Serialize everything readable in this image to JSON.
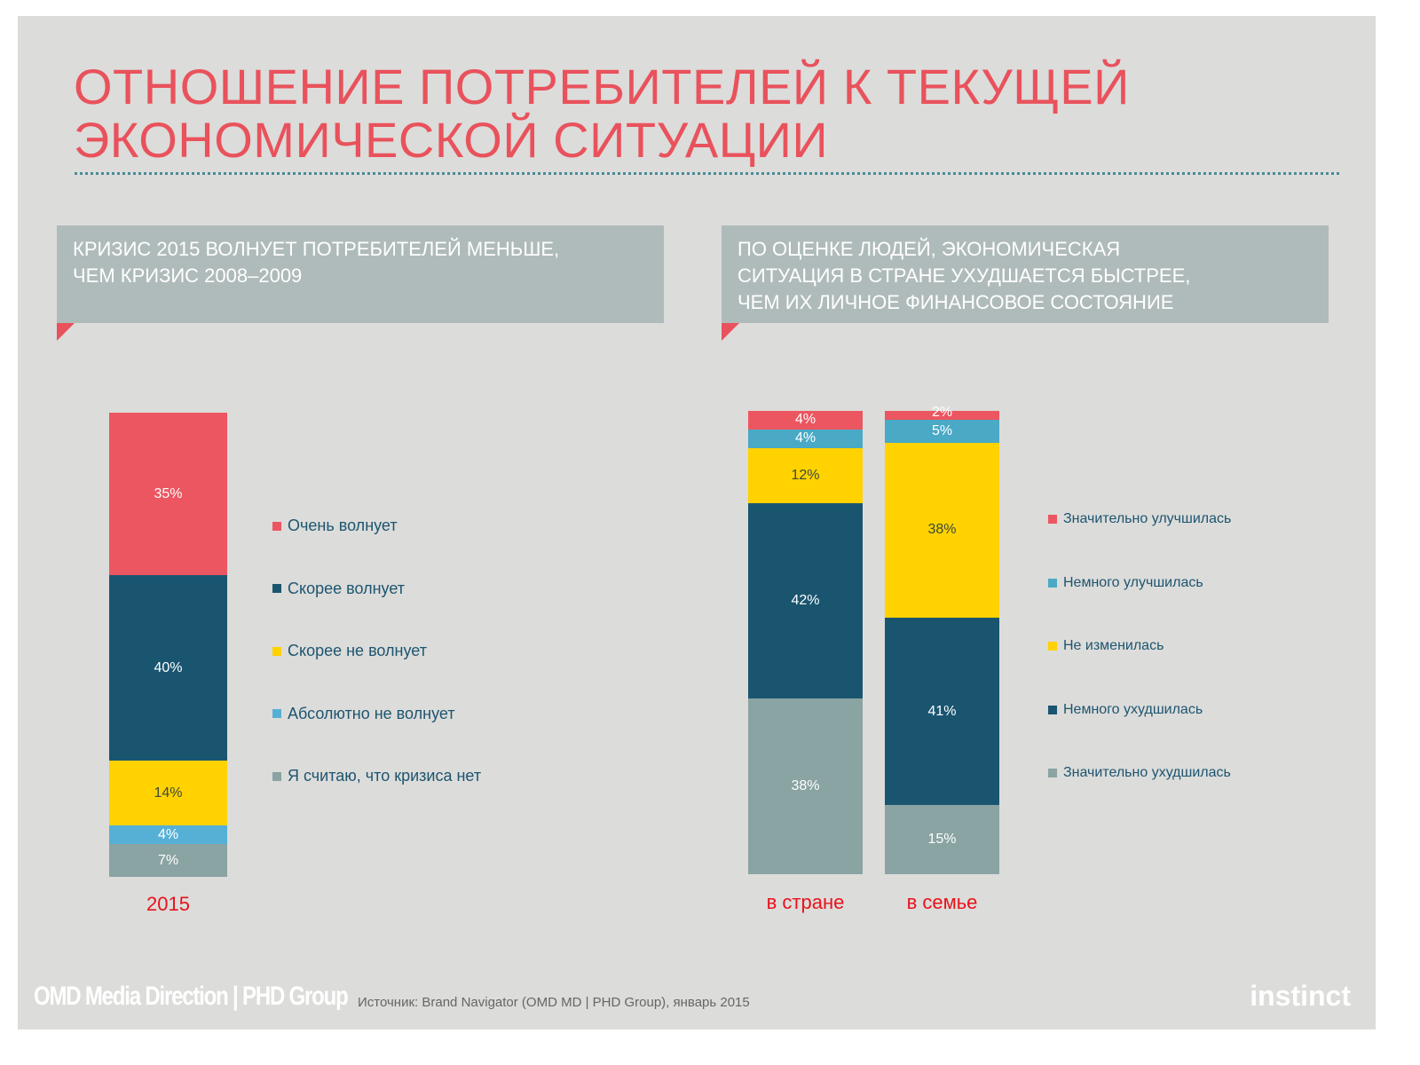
{
  "title_line1": "ОТНОШЕНИЕ ПОТРЕБИТЕЛЕЙ К ТЕКУЩЕЙ",
  "title_line2": "ЭКОНОМИЧЕСКОЙ СИТУАЦИИ",
  "left_header": [
    "КРИЗИС 2015 ВОЛНУЕТ ПОТРЕБИТЕЛЕЙ МЕНЬШЕ,",
    "ЧЕМ КРИЗИС 2008–2009"
  ],
  "right_header": [
    "ПО ОЦЕНКЕ ЛЮДЕЙ, ЭКОНОМИЧЕСКАЯ",
    "СИТУАЦИЯ В СТРАНЕ УХУДШАЕТСЯ БЫСТРЕЕ,",
    "ЧЕМ ИХ ЛИЧНОЕ ФИНАНСОВОЕ  СОСТОЯНИЕ"
  ],
  "chart_data": [
    {
      "type": "bar",
      "stacked": true,
      "unit": "%",
      "categories": [
        "2015"
      ],
      "series": [
        {
          "name": "Очень волнует",
          "values": [
            35
          ],
          "color": "#ec5660",
          "label_color": "#ffffff"
        },
        {
          "name": "Скорее волнует",
          "values": [
            40
          ],
          "color": "#1a5570",
          "label_color": "#ffffff"
        },
        {
          "name": "Скорее не волнует",
          "values": [
            14
          ],
          "color": "#ffd200",
          "label_color": "#3a4a3a"
        },
        {
          "name": "Абсолютно не волнует",
          "values": [
            4
          ],
          "color": "#56b0d6",
          "label_color": "#ffffff"
        },
        {
          "name": "Я считаю, что кризиса нет",
          "values": [
            7
          ],
          "color": "#8aa3a3",
          "label_color": "#ffffff"
        }
      ],
      "legend_placement": "right"
    },
    {
      "type": "bar",
      "stacked": true,
      "unit": "%",
      "categories": [
        "в стране",
        "в семье"
      ],
      "series": [
        {
          "name": "Значительно улучшилась",
          "values": [
            4,
            2
          ],
          "color": "#ec5660",
          "label_color": "#ffffff"
        },
        {
          "name": "Немного улучшилась",
          "values": [
            4,
            5
          ],
          "color": "#4aa9c5",
          "label_color": "#ffffff"
        },
        {
          "name": "Не изменилась",
          "values": [
            12,
            38
          ],
          "color": "#ffd200",
          "label_color": "#3a4a3a"
        },
        {
          "name": "Немного ухудшилась",
          "values": [
            42,
            41
          ],
          "color": "#1a5570",
          "label_color": "#ffffff"
        },
        {
          "name": "Значительно ухудшилась",
          "values": [
            38,
            15
          ],
          "color": "#8aa3a3",
          "label_color": "#ffffff"
        }
      ],
      "legend_placement": "right"
    }
  ],
  "footer": {
    "logo": "OMD Media Direction | PHD Group",
    "source": "Источник: Brand Navigator (OMD MD | PHD Group), январь 2015",
    "brand": "instinct"
  }
}
